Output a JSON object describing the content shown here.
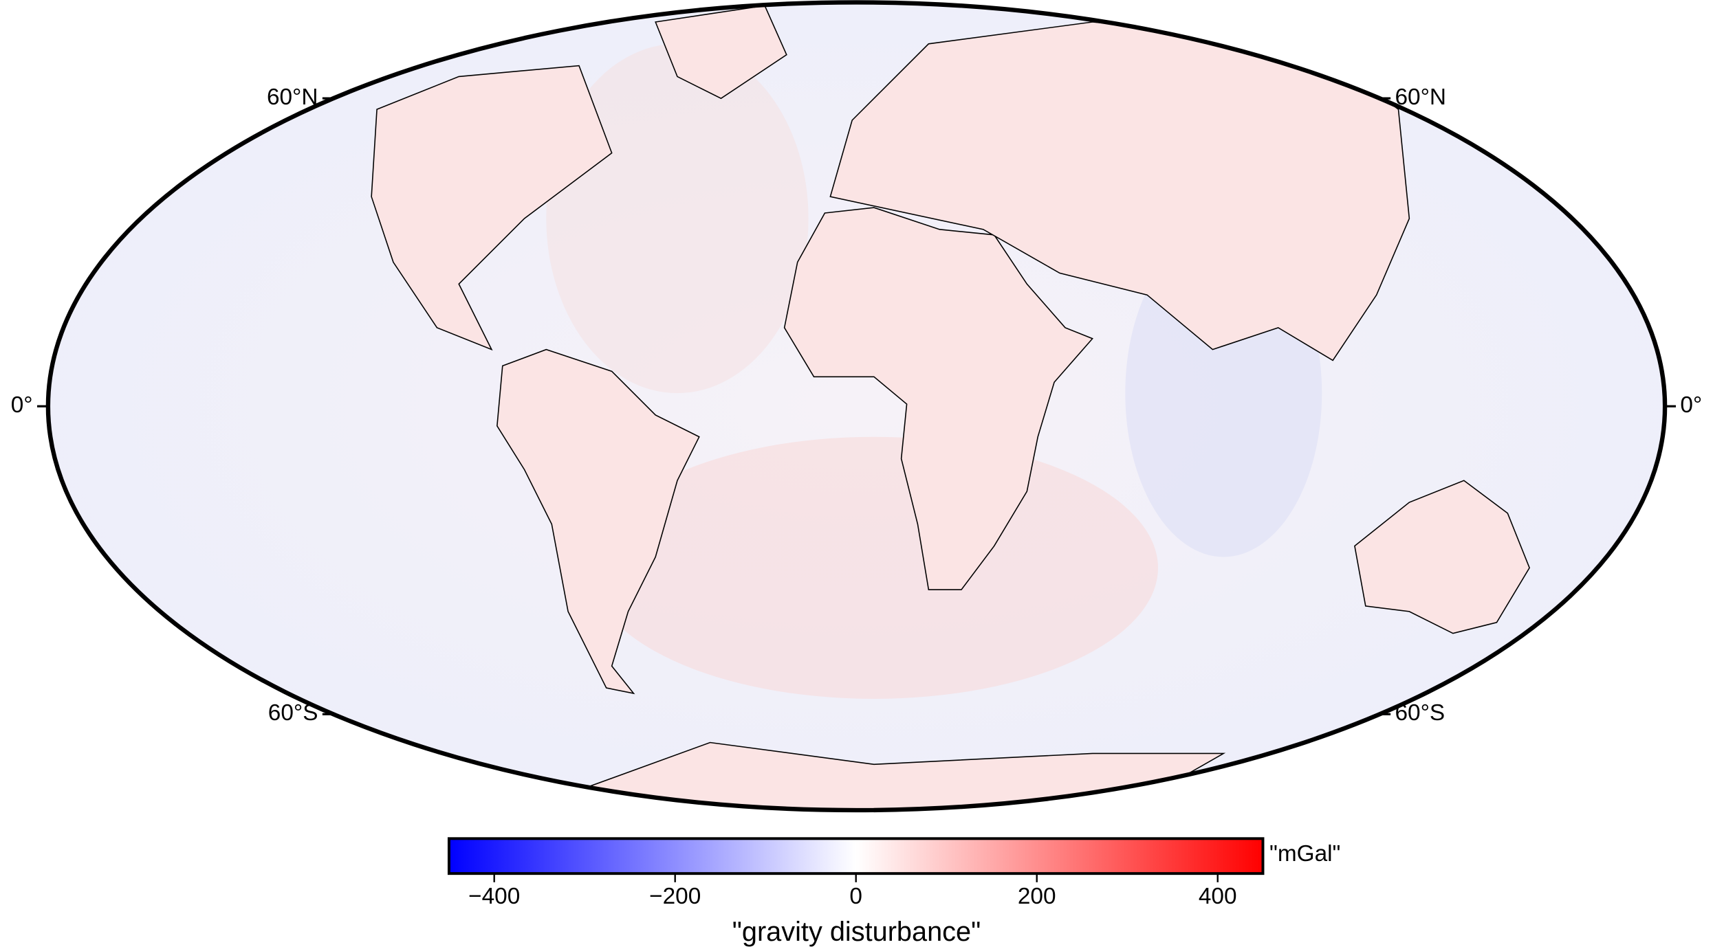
{
  "map": {
    "latitude_labels": [
      {
        "value": 60,
        "label": "60°N"
      },
      {
        "value": 0,
        "label": "0°"
      },
      {
        "value": -60,
        "label": "60°S"
      }
    ],
    "colorbar": {
      "label": "\"gravity disturbance\"",
      "unit": "\"mGal\"",
      "lim": [
        -450,
        450
      ],
      "ticks": [
        {
          "value": -400,
          "label": "−400"
        },
        {
          "value": -200,
          "label": "−200"
        },
        0,
        200,
        400
      ],
      "colors": [
        "#0000ff",
        "#ffffff",
        "#ff0000"
      ]
    }
  }
}
